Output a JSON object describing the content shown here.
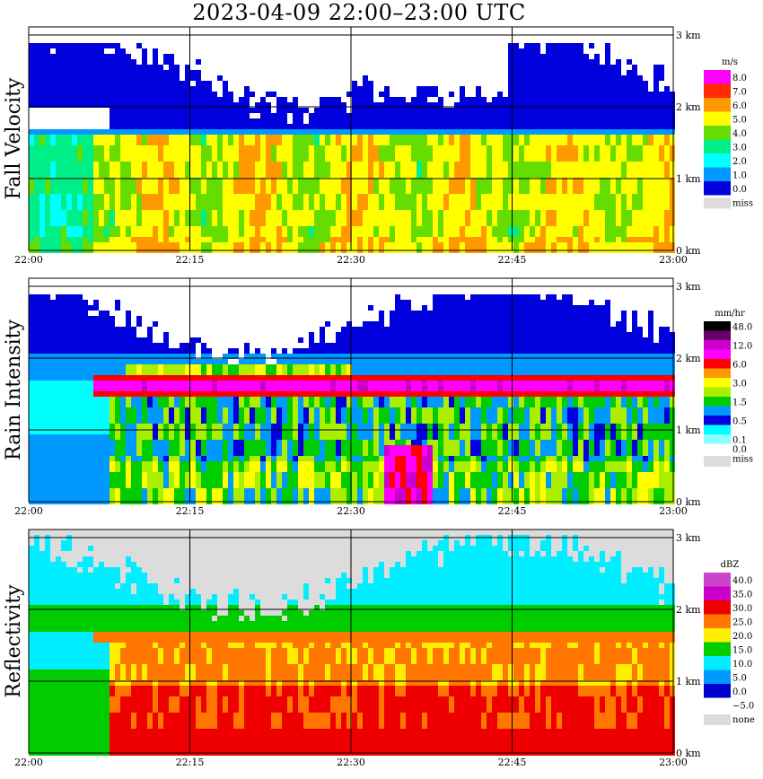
{
  "title": "2023-04-09   22:00–23:00 UTC",
  "chart_data": [
    {
      "type": "heatmap",
      "ylabel": "Fall Velocity",
      "legend_title": "m/s",
      "x_ticks": [
        "22:00",
        "22:15",
        "22:30",
        "22:45",
        "23:00"
      ],
      "y_ticks": [
        "0 km",
        "1 km",
        "2 km",
        "3 km"
      ],
      "ylim_km": [
        0,
        3.1
      ],
      "grid": true,
      "legend_position": "right",
      "legend": [
        {
          "label": "8.0",
          "color": "#ff00ff"
        },
        {
          "label": "7.0",
          "color": "#ff2a00"
        },
        {
          "label": "6.0",
          "color": "#ff9900"
        },
        {
          "label": "5.0",
          "color": "#ffff00"
        },
        {
          "label": "4.0",
          "color": "#66dd00"
        },
        {
          "label": "3.0",
          "color": "#00ee88"
        },
        {
          "label": "2.0",
          "color": "#00ffff"
        },
        {
          "label": "1.0",
          "color": "#0099ff"
        },
        {
          "label": "0.0",
          "color": "#0000dd"
        },
        {
          "label": "miss",
          "color": "#dcdcdc"
        }
      ]
    },
    {
      "type": "heatmap",
      "ylabel": "Rain Intensity",
      "legend_title": "mm/hr",
      "x_ticks": [
        "22:00",
        "22:15",
        "22:30",
        "22:45",
        "23:00"
      ],
      "y_ticks": [
        "0 km",
        "1 km",
        "2 km",
        "3 km"
      ],
      "ylim_km": [
        0,
        3.1
      ],
      "grid": true,
      "legend_position": "right",
      "legend": [
        {
          "label": "48.0",
          "color": "#000000"
        },
        {
          "label": "",
          "color": "#660066"
        },
        {
          "label": "12.0",
          "color": "#cc00cc"
        },
        {
          "label": "",
          "color": "#ff00ff"
        },
        {
          "label": "6.0",
          "color": "#ff0000"
        },
        {
          "label": "",
          "color": "#ff9900"
        },
        {
          "label": "3.0",
          "color": "#ffff00"
        },
        {
          "label": "",
          "color": "#aaee00"
        },
        {
          "label": "1.5",
          "color": "#00cc00"
        },
        {
          "label": "",
          "color": "#0099ff"
        },
        {
          "label": "0.5",
          "color": "#0000dd"
        },
        {
          "label": "",
          "color": "#00ffff"
        },
        {
          "label": "0.1",
          "color": "#88ffff"
        },
        {
          "label": "0.0",
          "color": "#ffffff"
        },
        {
          "label": "miss",
          "color": "#dcdcdc"
        }
      ]
    },
    {
      "type": "heatmap",
      "ylabel": "Reflectivity",
      "legend_title": "dBZ",
      "x_ticks": [
        "22:00",
        "22:15",
        "22:30",
        "22:45",
        "23:00"
      ],
      "y_ticks": [
        "0 km",
        "1 km",
        "2 km",
        "3 km"
      ],
      "ylim_km": [
        0,
        3.1
      ],
      "grid": true,
      "legend_position": "right",
      "legend": [
        {
          "label": "40.0",
          "color": "#cc44cc"
        },
        {
          "label": "35.0",
          "color": "#cc00cc"
        },
        {
          "label": "30.0",
          "color": "#ee0000"
        },
        {
          "label": "25.0",
          "color": "#ff7700"
        },
        {
          "label": "20.0",
          "color": "#ffee00"
        },
        {
          "label": "15.0",
          "color": "#00cc00"
        },
        {
          "label": "10.0",
          "color": "#00eeff"
        },
        {
          "label": "5.0",
          "color": "#0099ff"
        },
        {
          "label": "0.0",
          "color": "#0000cc"
        },
        {
          "label": "−5.0",
          "color": "#ffffff"
        },
        {
          "label": "none",
          "color": "#dcdcdc"
        }
      ]
    }
  ]
}
